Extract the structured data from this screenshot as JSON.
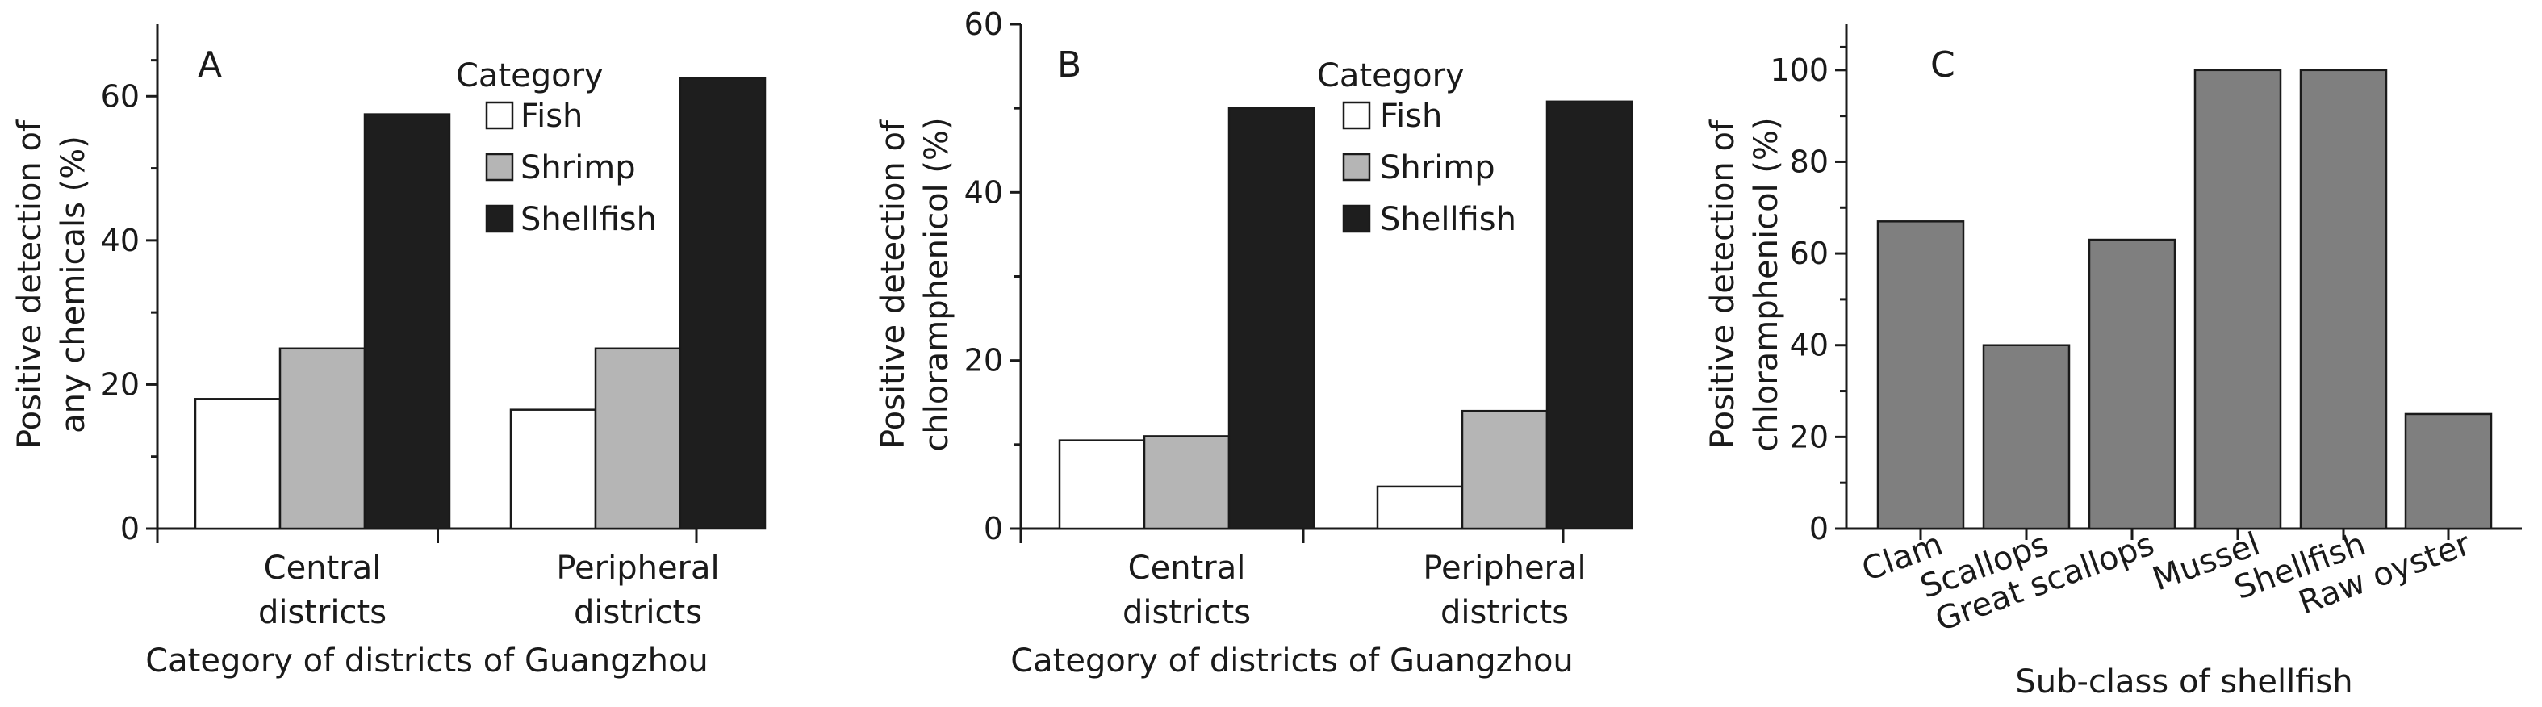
{
  "chart_data": [
    {
      "type": "bar",
      "panel": "A",
      "categories": [
        "Central\ndistricts",
        "Peripheral\ndistricts"
      ],
      "series": [
        {
          "name": "Fish",
          "color": "#ffffff",
          "values": [
            18,
            16.5
          ]
        },
        {
          "name": "Shrimp",
          "color": "#b5b5b5",
          "values": [
            25,
            25
          ]
        },
        {
          "name": "Shellfish",
          "color": "#1e1e1e",
          "values": [
            57.5,
            62.5
          ]
        }
      ],
      "legend_title": "Category",
      "legend_position": "top-right",
      "xlabel": "Category of districts of Guangzhou",
      "ylabel": "Positive detection of\nany chemicals (%)",
      "ylim": [
        0,
        70
      ],
      "yticks": [
        0,
        20,
        40,
        60
      ],
      "grid": false
    },
    {
      "type": "bar",
      "panel": "B",
      "categories": [
        "Central\ndistricts",
        "Peripheral\ndistricts"
      ],
      "series": [
        {
          "name": "Fish",
          "color": "#ffffff",
          "values": [
            10.5,
            5
          ]
        },
        {
          "name": "Shrimp",
          "color": "#b5b5b5",
          "values": [
            11,
            14
          ]
        },
        {
          "name": "Shellfish",
          "color": "#1e1e1e",
          "values": [
            50,
            50.8
          ]
        }
      ],
      "legend_title": "Category",
      "legend_position": "top-right",
      "xlabel": "Category of districts of Guangzhou",
      "ylabel": "Positive detection of\nchloramphenicol (%)",
      "ylim": [
        0,
        60
      ],
      "yticks": [
        0,
        20,
        40,
        60
      ],
      "grid": false
    },
    {
      "type": "bar",
      "panel": "C",
      "categories": [
        "Clam",
        "Scallops",
        "Great scallops",
        "Mussel",
        "Shellfish",
        "Raw oyster"
      ],
      "series": [
        {
          "name": "",
          "color": "#7f7f7f",
          "values": [
            67,
            40,
            63,
            100,
            100,
            25
          ]
        }
      ],
      "xlabel": "Sub-class of shellfish",
      "ylabel": "Positive detection of\nchloramphenicol (%)",
      "ylim": [
        0,
        110
      ],
      "yticks": [
        0,
        20,
        40,
        60,
        80,
        100
      ],
      "grid": false
    }
  ]
}
